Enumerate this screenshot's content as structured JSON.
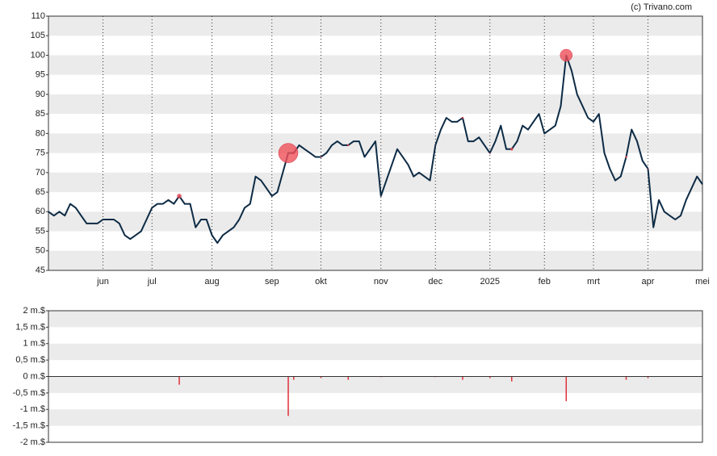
{
  "watermark": "(c) Trivano.com",
  "chart_data": [
    {
      "type": "line",
      "categories": [
        null,
        null,
        null,
        null,
        null,
        null,
        null,
        null,
        null,
        null,
        "jun",
        null,
        null,
        null,
        null,
        null,
        null,
        null,
        null,
        "jul",
        null,
        null,
        null,
        null,
        null,
        null,
        null,
        null,
        null,
        null,
        "aug",
        null,
        null,
        null,
        null,
        null,
        null,
        null,
        null,
        null,
        null,
        "sep",
        null,
        null,
        null,
        null,
        null,
        null,
        null,
        null,
        "okt",
        null,
        null,
        null,
        null,
        null,
        null,
        null,
        null,
        null,
        null,
        "nov",
        null,
        null,
        null,
        null,
        null,
        null,
        null,
        null,
        null,
        "dec",
        null,
        null,
        null,
        null,
        null,
        null,
        null,
        null,
        null,
        "2025",
        null,
        null,
        null,
        null,
        null,
        null,
        null,
        null,
        null,
        "feb",
        null,
        null,
        null,
        null,
        null,
        null,
        null,
        null,
        "mrt",
        null,
        null,
        null,
        null,
        null,
        null,
        null,
        null,
        null,
        "apr",
        null,
        null,
        null,
        null,
        null,
        null,
        null,
        null,
        null,
        "mei"
      ],
      "series": [
        {
          "color": "#0d2b45",
          "values": [
            60,
            59,
            60,
            59,
            62,
            61,
            59,
            57,
            57,
            57,
            58,
            58,
            58,
            57,
            54,
            53,
            54,
            55,
            58,
            61,
            62,
            62,
            63,
            62,
            64,
            62,
            62,
            56,
            58,
            58,
            54,
            52,
            54,
            55,
            56,
            58,
            61,
            62,
            69,
            68,
            66,
            64,
            65,
            70,
            75,
            75,
            77,
            76,
            75,
            74,
            74,
            75,
            77,
            78,
            77,
            77,
            78,
            78,
            74,
            76,
            78,
            64,
            68,
            72,
            76,
            74,
            72,
            69,
            70,
            69,
            68,
            77,
            81,
            84,
            83,
            83,
            84,
            78,
            78,
            79,
            77,
            75,
            78,
            82,
            76,
            76,
            78,
            82,
            81,
            83,
            85,
            80,
            81,
            82,
            87,
            100,
            96,
            90,
            87,
            84,
            83,
            85,
            75,
            71,
            68,
            69,
            74,
            81,
            78,
            73,
            71,
            56,
            63,
            60,
            59,
            58,
            59,
            63,
            66,
            69,
            67
          ]
        }
      ],
      "marker_color": "#f0505a",
      "ylim": [
        45,
        110
      ],
      "yticks": [
        45,
        50,
        55,
        60,
        65,
        70,
        75,
        80,
        85,
        90,
        95,
        100,
        105,
        110
      ],
      "grid": true
    },
    {
      "type": "bar",
      "color": "#e0303a",
      "values": [
        null,
        null,
        null,
        null,
        null,
        null,
        null,
        null,
        null,
        null,
        null,
        null,
        null,
        null,
        null,
        null,
        null,
        null,
        null,
        null,
        null,
        null,
        null,
        null,
        -0.25,
        null,
        null,
        null,
        null,
        null,
        null,
        null,
        null,
        null,
        null,
        null,
        null,
        null,
        null,
        null,
        null,
        null,
        null,
        null,
        -1.2,
        -0.1,
        null,
        null,
        null,
        null,
        -0.05,
        null,
        null,
        null,
        null,
        -0.1,
        null,
        null,
        null,
        null,
        null,
        -0.02,
        null,
        null,
        null,
        null,
        null,
        null,
        null,
        null,
        null,
        -0.02,
        null,
        null,
        null,
        null,
        -0.1,
        null,
        null,
        null,
        null,
        -0.05,
        null,
        null,
        null,
        -0.15,
        null,
        null,
        null,
        null,
        null,
        null,
        null,
        null,
        null,
        -0.75,
        null,
        null,
        null,
        null,
        null,
        null,
        null,
        null,
        null,
        null,
        -0.1,
        null,
        null,
        null,
        -0.05,
        null,
        null,
        null,
        null,
        null,
        null,
        null,
        null,
        null,
        null
      ],
      "ylim": [
        -2,
        2
      ],
      "yticks": [
        {
          "value": -2,
          "label": "-2 m.$"
        },
        {
          "value": -1.5,
          "label": "-1,5 m.$"
        },
        {
          "value": -1,
          "label": "-1 m.$"
        },
        {
          "value": -0.5,
          "label": "-0,5 m.$"
        },
        {
          "value": 0,
          "label": "0 m.$"
        },
        {
          "value": 0.5,
          "label": "0,5 m.$"
        },
        {
          "value": 1,
          "label": "1 m.$"
        },
        {
          "value": 1.5,
          "label": "1,5 m.$"
        },
        {
          "value": 2,
          "label": "2 m.$"
        }
      ],
      "grid": true
    }
  ]
}
